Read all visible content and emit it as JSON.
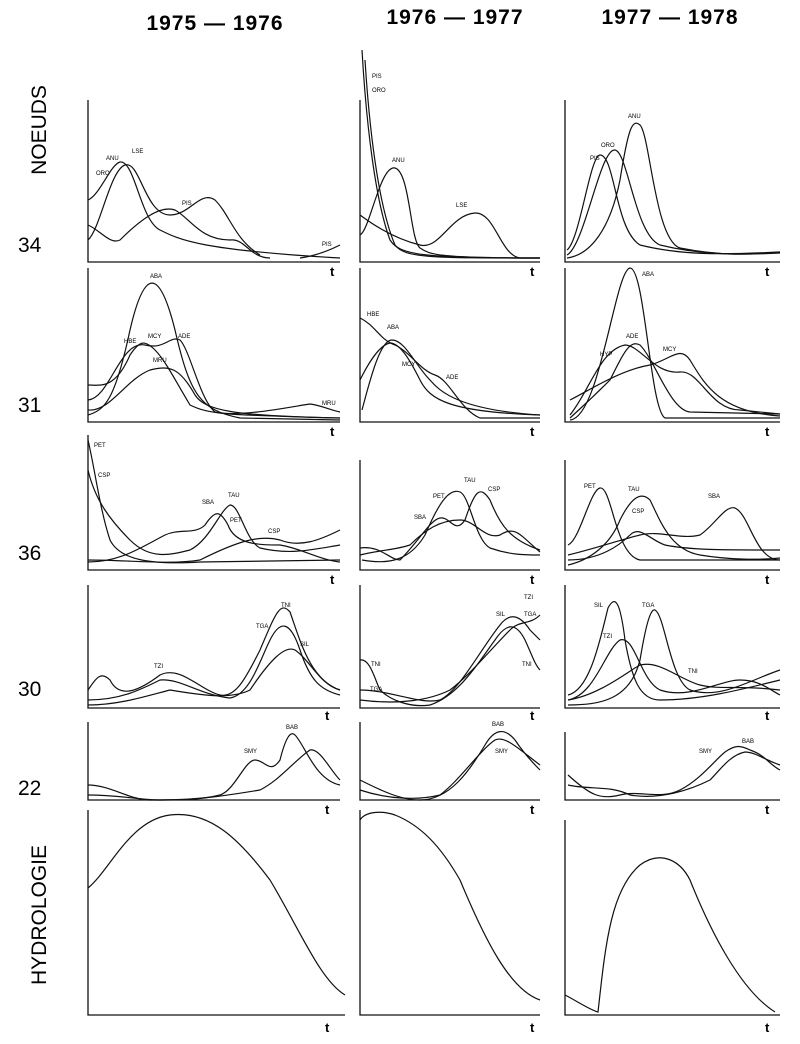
{
  "columns": [
    "1975 — 1976",
    "1976 — 1977",
    "1977 — 1978"
  ],
  "row_title": "NOEUDS",
  "rows": [
    "34",
    "31",
    "36",
    "30",
    "22"
  ],
  "hydrology_title": "HYDROLOGIE",
  "axis_label": "t",
  "panels": [
    [
      [
        "ORO",
        "ANU",
        "LSE",
        "PIS",
        "PIS"
      ],
      [
        "PIS",
        "ORO",
        "ANU",
        "LSE"
      ],
      [
        "PIS",
        "ORO",
        "ANU"
      ]
    ],
    [
      [
        "ABA",
        "HBE",
        "MCY",
        "ADE",
        "MRU",
        "MRU"
      ],
      [
        "HBE",
        "ABA",
        "MCY",
        "ADE"
      ],
      [
        "ABA",
        "HYP",
        "ADE",
        "MCY"
      ]
    ],
    [
      [
        "PET",
        "CSP",
        "SBA",
        "TAU",
        "PET",
        "CSP"
      ],
      [
        "SBA",
        "PET",
        "TAU",
        "CSP"
      ],
      [
        "PET",
        "TAU",
        "CSP",
        "SBA"
      ]
    ],
    [
      [
        "TNI",
        "TGA",
        "SIL",
        "TZI"
      ],
      [
        "TNI",
        "TGA",
        "SIL",
        "TZI",
        "TGA",
        "TNI"
      ],
      [
        "SIL",
        "TZI",
        "TGA",
        "TNI"
      ]
    ],
    [
      [
        "SMY",
        "BAB"
      ],
      [
        "BAB",
        "SMY"
      ],
      [
        "SMY",
        "BAB"
      ]
    ]
  ]
}
